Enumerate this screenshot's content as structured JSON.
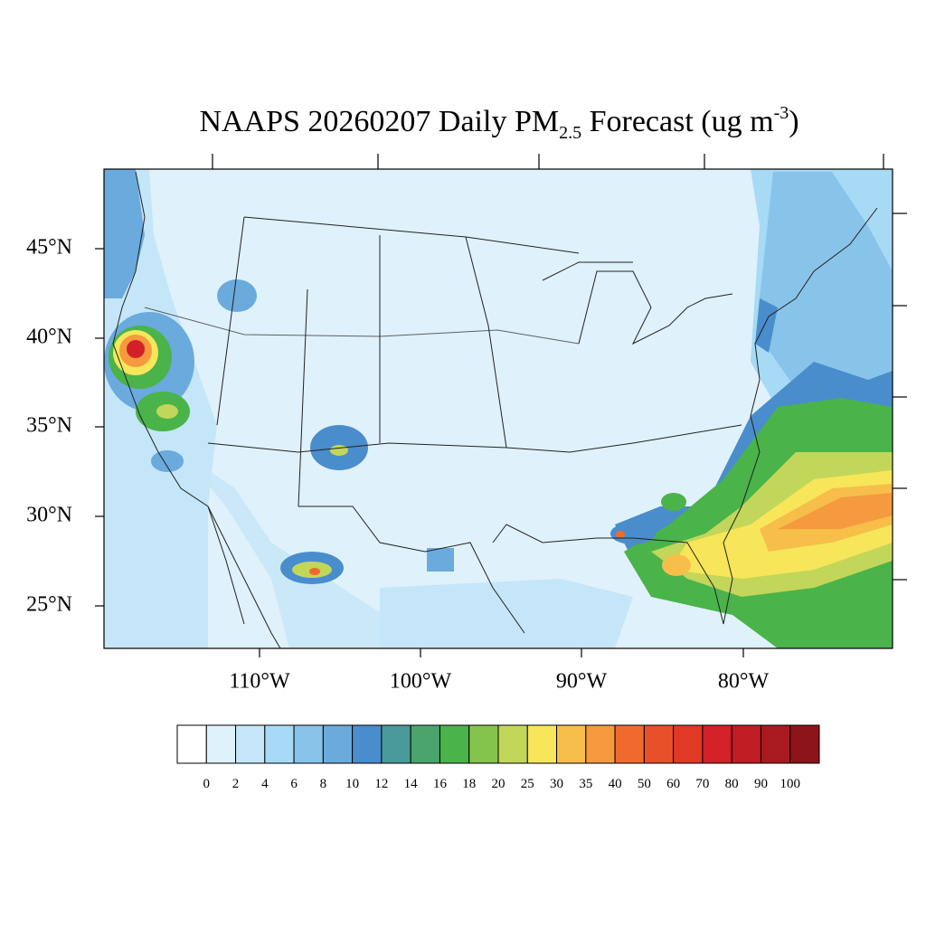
{
  "title": {
    "main": "NAAPS 20260207 Daily PM",
    "subscript": "2.5",
    "after": " Forecast (ug m",
    "superscript": "-3",
    "close": ")"
  },
  "lat_labels": [
    "45°N",
    "40°N",
    "35°N",
    "30°N",
    "25°N"
  ],
  "lon_labels": [
    "110°W",
    "100°W",
    "90°W",
    "80°W"
  ],
  "colorbar": {
    "labels": [
      "0",
      "2",
      "4",
      "6",
      "8",
      "10",
      "12",
      "14",
      "16",
      "18",
      "20",
      "25",
      "30",
      "35",
      "40",
      "50",
      "60",
      "70",
      "80",
      "90",
      "100"
    ],
    "colors": [
      "#ffffff",
      "#dff1fb",
      "#c4e6f8",
      "#a6daf5",
      "#88c4ea",
      "#6aaadd",
      "#4a8dcc",
      "#4a9a9a",
      "#4aa56c",
      "#4ab34a",
      "#84c44c",
      "#c2d65a",
      "#f7e65a",
      "#f7be4a",
      "#f59a3e",
      "#f06a2e",
      "#e8502a",
      "#e03a26",
      "#d42028",
      "#c01c24",
      "#a81a20",
      "#8c141a"
    ]
  }
}
